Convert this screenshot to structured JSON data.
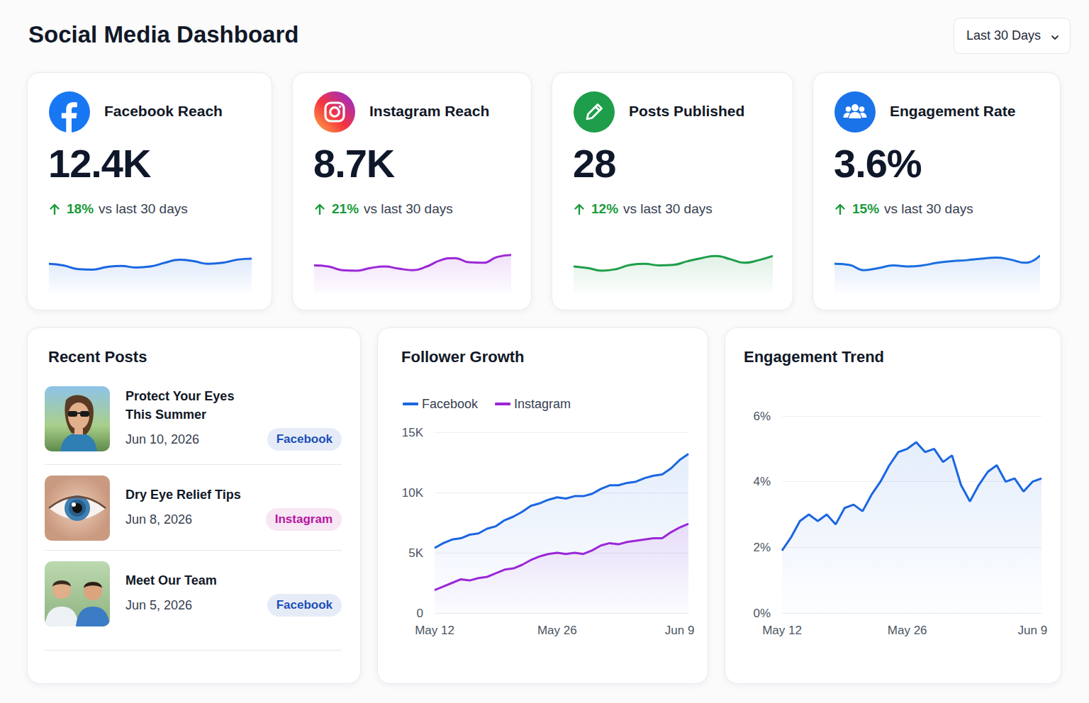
{
  "header": {
    "title": "Social Media Dashboard",
    "period": "Last 30 Days"
  },
  "cards": [
    {
      "label": "Facebook Reach",
      "value": "12.4K",
      "change": "18%",
      "change_text": "vs last 30 days",
      "sparkline": {
        "type": "line",
        "color": "#1a66e0",
        "values": [
          55,
          52,
          45,
          44,
          49,
          51,
          48,
          50,
          57,
          63,
          60,
          55,
          57,
          63,
          65
        ],
        "ylim": [
          0,
          100
        ],
        "tick_labels": false
      }
    },
    {
      "label": "Instagram Reach",
      "value": "8.7K",
      "change": "21%",
      "change_text": "vs last 30 days",
      "sparkline": {
        "type": "line",
        "color": "#9b27d6",
        "values": [
          52,
          50,
          43,
          42,
          47,
          50,
          46,
          43,
          50,
          62,
          66,
          58,
          57,
          68,
          72
        ],
        "ylim": [
          0,
          100
        ],
        "tick_labels": false
      }
    },
    {
      "label": "Posts Published",
      "value": "28",
      "change": "12%",
      "change_text": "vs last 30 days",
      "sparkline": {
        "type": "line",
        "color": "#1e9e4a",
        "values": [
          50,
          47,
          42,
          45,
          53,
          55,
          52,
          53,
          60,
          66,
          70,
          64,
          57,
          62,
          70
        ],
        "ylim": [
          0,
          100
        ],
        "tick_labels": false
      }
    },
    {
      "label": "Engagement Rate",
      "value": "3.6%",
      "change": "15%",
      "change_text": "vs last 30 days",
      "sparkline": {
        "type": "line",
        "color": "#1a6ee0",
        "values": [
          55,
          53,
          43,
          47,
          52,
          50,
          52,
          57,
          60,
          62,
          65,
          67,
          63,
          57,
          71
        ],
        "ylim": [
          0,
          100
        ],
        "tick_labels": false
      }
    }
  ],
  "recent_posts": {
    "title": "Recent Posts",
    "posts": [
      {
        "title": "Protect Your Eyes This Summer",
        "date": "Jun 10, 2026",
        "platform": "Facebook",
        "color": "#1b4fb8"
      },
      {
        "title": "Dry Eye Relief Tips",
        "date": "Jun 8, 2026",
        "platform": "Instagram",
        "color": "#b5179e"
      },
      {
        "title": "Meet Our Team",
        "date": "Jun 5, 2026",
        "platform": "Facebook",
        "color": "#1b4fb8"
      }
    ]
  },
  "chart_data": [
    {
      "type": "line",
      "title": "Follower Growth",
      "categories": [
        "May 12",
        null,
        null,
        null,
        null,
        null,
        null,
        null,
        null,
        null,
        null,
        null,
        null,
        null,
        "May 26",
        null,
        null,
        null,
        null,
        null,
        null,
        null,
        null,
        null,
        null,
        null,
        null,
        null,
        "Jun 9",
        null
      ],
      "series": [
        {
          "name": "Facebook",
          "color": "#1a66e0",
          "values": [
            5400,
            5800,
            6100,
            6200,
            6500,
            6600,
            7000,
            7200,
            7700,
            8000,
            8400,
            8900,
            9100,
            9400,
            9600,
            9500,
            9700,
            9700,
            9900,
            10300,
            10600,
            10600,
            10800,
            10900,
            11200,
            11400,
            11500,
            12000,
            12700,
            13200
          ]
        },
        {
          "name": "Instagram",
          "color": "#9b27d6",
          "values": [
            1900,
            2200,
            2500,
            2800,
            2700,
            2900,
            3000,
            3300,
            3600,
            3700,
            4000,
            4400,
            4700,
            4900,
            5000,
            4900,
            5000,
            4900,
            5200,
            5600,
            5800,
            5700,
            5900,
            6000,
            6100,
            6200,
            6200,
            6700,
            7100,
            7400
          ]
        }
      ],
      "ylim": [
        0,
        15000
      ],
      "yticks": [
        0,
        {
          "value": 5000,
          "label": "5K"
        },
        {
          "value": 10000,
          "label": "10K"
        },
        {
          "value": 15000,
          "label": "15K"
        }
      ],
      "grid": true,
      "legend": "upper left"
    },
    {
      "type": "line",
      "title": "Engagement Trend",
      "categories": [
        "May 12",
        null,
        null,
        null,
        null,
        null,
        null,
        null,
        null,
        null,
        null,
        null,
        null,
        null,
        "May 26",
        null,
        null,
        null,
        null,
        null,
        null,
        null,
        null,
        null,
        null,
        null,
        null,
        null,
        "Jun 9",
        null
      ],
      "series": [
        {
          "color": "#1a66e0",
          "values": [
            1.9,
            2.3,
            2.8,
            3.0,
            2.8,
            3.0,
            2.7,
            3.2,
            3.3,
            3.1,
            3.6,
            4.0,
            4.5,
            4.9,
            5.0,
            5.2,
            4.9,
            5.0,
            4.6,
            4.8,
            3.9,
            3.4,
            3.9,
            4.3,
            4.5,
            4.0,
            4.1,
            3.7,
            4.0,
            4.1
          ]
        }
      ],
      "ylim": [
        0,
        6
      ],
      "yticks": [
        {
          "value": 0,
          "label": "0%"
        },
        {
          "value": 2,
          "label": "2%"
        },
        {
          "value": 4,
          "label": "4%"
        },
        {
          "value": 6,
          "label": "6%"
        }
      ],
      "grid": true
    }
  ]
}
